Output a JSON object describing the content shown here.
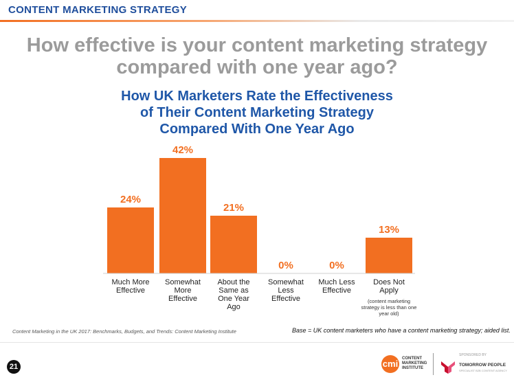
{
  "header": {
    "title": "CONTENT MARKETING STRATEGY"
  },
  "question": "How effective is your content marketing strategy compared with one year ago?",
  "question_lines": [
    "How effective is your content marketing strategy",
    "compared with one year ago?"
  ],
  "chart_data": {
    "type": "bar",
    "title_lines": [
      "How UK Marketers Rate the Effectiveness",
      "of Their Content Marketing Strategy",
      "Compared With One Year Ago"
    ],
    "categories": [
      [
        "Much More",
        "Effective"
      ],
      [
        "Somewhat",
        "More",
        "Effective"
      ],
      [
        "About the",
        "Same as",
        "One Year",
        "Ago"
      ],
      [
        "Somewhat",
        "Less",
        "Effective"
      ],
      [
        "Much Less",
        "Effective"
      ],
      [
        "Does Not",
        "Apply"
      ]
    ],
    "values": [
      24,
      42,
      21,
      0,
      0,
      13
    ],
    "value_labels": [
      "24%",
      "42%",
      "21%",
      "0%",
      "0%",
      "13%"
    ],
    "category_note": "(content marketing strategy is less than one year old)",
    "bar_color": "#f26f21",
    "value_label_color": "#f26f21",
    "ylim": [
      0,
      42
    ]
  },
  "source": "Content Marketing in the UK 2017: Benchmarks, Budgets, and Trends: Content Marketing Institute",
  "base_note": "Base = UK content marketers who have a content marketing strategy; aided list.",
  "footer": {
    "page_number": "21",
    "cmi_logo": "cmi",
    "cmi_name": "CONTENT MARKETING INSTITUTE",
    "sponsored_by": "SPONSORED BY",
    "sponsor_name": "TOMORROW PEOPLE",
    "sponsor_tagline": "SPECIALIST B2B CONTENT AGENCY"
  },
  "colors": {
    "accent": "#f26f21",
    "title_blue": "#1f57a8",
    "question_gray": "#9b9b9b",
    "header_blue": "#1f4e9c"
  }
}
